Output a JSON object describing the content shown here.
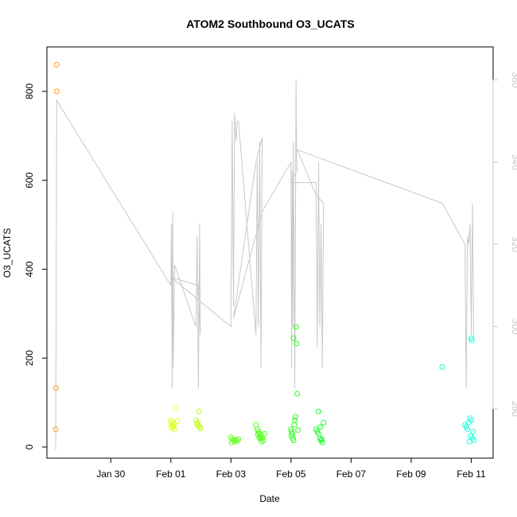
{
  "chart_data": {
    "type": "scatter",
    "title": "ATOM2 Southbound O3_UCATS",
    "xlabel": "Date",
    "ylabel": "O3_UCATS",
    "xlim_days": [
      "2017-01-27T21:00",
      "2017-02-11T17:30"
    ],
    "x_ticks": [
      {
        "label": "Jan 30",
        "date": "2017-01-30"
      },
      {
        "label": "Feb 01",
        "date": "2017-02-01"
      },
      {
        "label": "Feb 03",
        "date": "2017-02-03"
      },
      {
        "label": "Feb 05",
        "date": "2017-02-05"
      },
      {
        "label": "Feb 07",
        "date": "2017-02-07"
      },
      {
        "label": "Feb 09",
        "date": "2017-02-09"
      },
      {
        "label": "Feb 11",
        "date": "2017-02-11"
      }
    ],
    "ylim": [
      -25,
      900
    ],
    "y_ticks": [
      0,
      200,
      400,
      600,
      800
    ],
    "y2_lim": [
      268,
      368
    ],
    "y2_ticks": [
      280,
      300,
      320,
      340,
      360
    ],
    "secondary_line_color": "#c8c8c8",
    "grid": false,
    "marker": "open-circle",
    "series": [
      {
        "color": "#ff9a1a",
        "points": [
          [
            "2017-01-28T04:48",
            860
          ],
          [
            "2017-01-28T04:48",
            800
          ],
          [
            "2017-01-28T04:12",
            133
          ],
          [
            "2017-01-28T04:00",
            40
          ]
        ]
      },
      {
        "color": "#e0ff1a",
        "points": [
          [
            "2017-02-01T00:00",
            60
          ],
          [
            "2017-02-01T00:30",
            55
          ],
          [
            "2017-02-01T01:00",
            50
          ],
          [
            "2017-02-01T01:30",
            48
          ],
          [
            "2017-02-01T02:00",
            45
          ],
          [
            "2017-02-01T02:30",
            52
          ],
          [
            "2017-02-01T03:00",
            40
          ],
          [
            "2017-02-01T04:00",
            88
          ],
          [
            "2017-02-01T05:00",
            58
          ],
          [
            "2017-02-01T00:15",
            44
          ]
        ]
      },
      {
        "color": "#c0ff1a",
        "points": [
          [
            "2017-02-01T20:00",
            60
          ],
          [
            "2017-02-01T21:00",
            52
          ],
          [
            "2017-02-01T22:00",
            48
          ],
          [
            "2017-02-01T23:00",
            45
          ],
          [
            "2017-02-01T23:30",
            42
          ],
          [
            "2017-02-01T22:30",
            80
          ],
          [
            "2017-02-01T21:30",
            55
          ]
        ]
      },
      {
        "color": "#66ff1a",
        "points": [
          [
            "2017-02-03T00:00",
            22
          ],
          [
            "2017-02-03T01:00",
            18
          ],
          [
            "2017-02-03T02:00",
            15
          ],
          [
            "2017-02-03T03:00",
            12
          ],
          [
            "2017-02-03T04:00",
            16
          ],
          [
            "2017-02-03T05:00",
            14
          ],
          [
            "2017-02-03T06:00",
            18
          ],
          [
            "2017-02-03T00:30",
            10
          ]
        ]
      },
      {
        "color": "#50ff1a",
        "points": [
          [
            "2017-02-03T20:00",
            50
          ],
          [
            "2017-02-03T21:00",
            40
          ],
          [
            "2017-02-03T22:00",
            35
          ],
          [
            "2017-02-03T23:00",
            30
          ],
          [
            "2017-02-04T00:00",
            25
          ],
          [
            "2017-02-04T01:00",
            20
          ],
          [
            "2017-02-04T02:00",
            15
          ],
          [
            "2017-02-04T03:00",
            30
          ],
          [
            "2017-02-03T21:30",
            28
          ],
          [
            "2017-02-03T22:30",
            22
          ],
          [
            "2017-02-03T23:30",
            18
          ],
          [
            "2017-02-04T00:30",
            12
          ]
        ]
      },
      {
        "color": "#2bff1a",
        "points": [
          [
            "2017-02-05T00:00",
            40
          ],
          [
            "2017-02-05T00:30",
            35
          ],
          [
            "2017-02-05T01:00",
            30
          ],
          [
            "2017-02-05T01:30",
            20
          ],
          [
            "2017-02-05T02:00",
            15
          ],
          [
            "2017-02-05T02:30",
            50
          ],
          [
            "2017-02-05T03:00",
            60
          ],
          [
            "2017-02-05T03:30",
            68
          ],
          [
            "2017-02-05T02:00",
            245
          ],
          [
            "2017-02-05T04:00",
            270
          ],
          [
            "2017-02-05T04:30",
            233
          ],
          [
            "2017-02-05T05:00",
            120
          ],
          [
            "2017-02-05T05:30",
            38
          ],
          [
            "2017-02-05T00:15",
            25
          ]
        ]
      },
      {
        "color": "#1aff2b",
        "points": [
          [
            "2017-02-05T20:00",
            40
          ],
          [
            "2017-02-05T21:00",
            35
          ],
          [
            "2017-02-05T22:00",
            30
          ],
          [
            "2017-02-05T23:00",
            20
          ],
          [
            "2017-02-06T00:00",
            15
          ],
          [
            "2017-02-06T01:00",
            10
          ],
          [
            "2017-02-06T02:00",
            55
          ],
          [
            "2017-02-05T22:00",
            80
          ],
          [
            "2017-02-05T23:30",
            45
          ],
          [
            "2017-02-06T00:30",
            18
          ]
        ]
      },
      {
        "color": "#1affb0",
        "points": [
          [
            "2017-02-10T00:48",
            180
          ]
        ]
      },
      {
        "color": "#1affd9",
        "points": [
          [
            "2017-02-10T19:00",
            50
          ],
          [
            "2017-02-10T20:00",
            45
          ],
          [
            "2017-02-10T21:00",
            40
          ],
          [
            "2017-02-10T22:00",
            55
          ],
          [
            "2017-02-10T23:00",
            65
          ],
          [
            "2017-02-11T00:00",
            60
          ],
          [
            "2017-02-11T01:00",
            20
          ],
          [
            "2017-02-11T02:00",
            15
          ],
          [
            "2017-02-11T00:00",
            245
          ],
          [
            "2017-02-11T00:30",
            240
          ],
          [
            "2017-02-10T23:30",
            25
          ],
          [
            "2017-02-10T22:30",
            12
          ],
          [
            "2017-02-11T01:30",
            35
          ]
        ]
      }
    ],
    "secondary_line": [
      [
        "2017-01-28T04:00",
        270
      ],
      [
        "2017-01-28T04:48",
        355
      ],
      [
        "2017-02-01T00:00",
        310
      ],
      [
        "2017-02-01T00:30",
        325
      ],
      [
        "2017-02-01T01:00",
        285
      ],
      [
        "2017-02-01T01:30",
        328
      ],
      [
        "2017-02-01T02:00",
        290
      ],
      [
        "2017-02-01T03:00",
        315
      ],
      [
        "2017-02-01T20:00",
        300
      ],
      [
        "2017-02-01T21:00",
        322
      ],
      [
        "2017-02-01T22:00",
        285
      ],
      [
        "2017-02-01T23:00",
        325
      ],
      [
        "2017-02-01T23:30",
        298
      ],
      [
        "2017-02-01T22:00",
        310
      ],
      [
        "2017-02-01T00:00",
        312
      ],
      [
        "2017-02-03T00:00",
        300
      ],
      [
        "2017-02-03T01:00",
        350
      ],
      [
        "2017-02-03T02:00",
        305
      ],
      [
        "2017-02-03T03:00",
        352
      ],
      [
        "2017-02-03T04:00",
        345
      ],
      [
        "2017-02-03T05:00",
        350
      ],
      [
        "2017-02-03T06:00",
        350
      ],
      [
        "2017-02-03T20:00",
        298
      ],
      [
        "2017-02-03T21:00",
        340
      ],
      [
        "2017-02-03T22:00",
        300
      ],
      [
        "2017-02-03T23:00",
        345
      ],
      [
        "2017-02-04T00:00",
        290
      ],
      [
        "2017-02-04T01:00",
        346
      ],
      [
        "2017-02-03T20:00",
        340
      ],
      [
        "2017-02-03T02:00",
        302
      ],
      [
        "2017-02-04T01:00",
        328
      ],
      [
        "2017-02-05T00:00",
        340
      ],
      [
        "2017-02-05T00:30",
        290
      ],
      [
        "2017-02-05T01:00",
        338
      ],
      [
        "2017-02-05T01:30",
        300
      ],
      [
        "2017-02-05T02:00",
        345
      ],
      [
        "2017-02-05T03:00",
        285
      ],
      [
        "2017-02-05T04:00",
        360
      ],
      [
        "2017-02-05T04:30",
        340
      ],
      [
        "2017-02-05T05:00",
        338
      ],
      [
        "2017-02-05T00:00",
        335
      ],
      [
        "2017-02-05T20:00",
        335
      ],
      [
        "2017-02-05T21:00",
        295
      ],
      [
        "2017-02-05T22:00",
        340
      ],
      [
        "2017-02-05T23:00",
        300
      ],
      [
        "2017-02-06T00:00",
        325
      ],
      [
        "2017-02-06T01:00",
        290
      ],
      [
        "2017-02-06T02:00",
        330
      ],
      [
        "2017-02-05T20:00",
        332
      ],
      [
        "2017-02-05T05:00",
        343
      ],
      [
        "2017-02-10T00:48",
        330
      ],
      [
        "2017-02-10T19:00",
        320
      ],
      [
        "2017-02-10T20:00",
        285
      ],
      [
        "2017-02-10T21:00",
        322
      ],
      [
        "2017-02-10T22:00",
        320
      ],
      [
        "2017-02-10T23:00",
        325
      ],
      [
        "2017-02-11T00:00",
        298
      ],
      [
        "2017-02-11T01:00",
        330
      ],
      [
        "2017-02-11T02:00",
        297
      ]
    ]
  }
}
